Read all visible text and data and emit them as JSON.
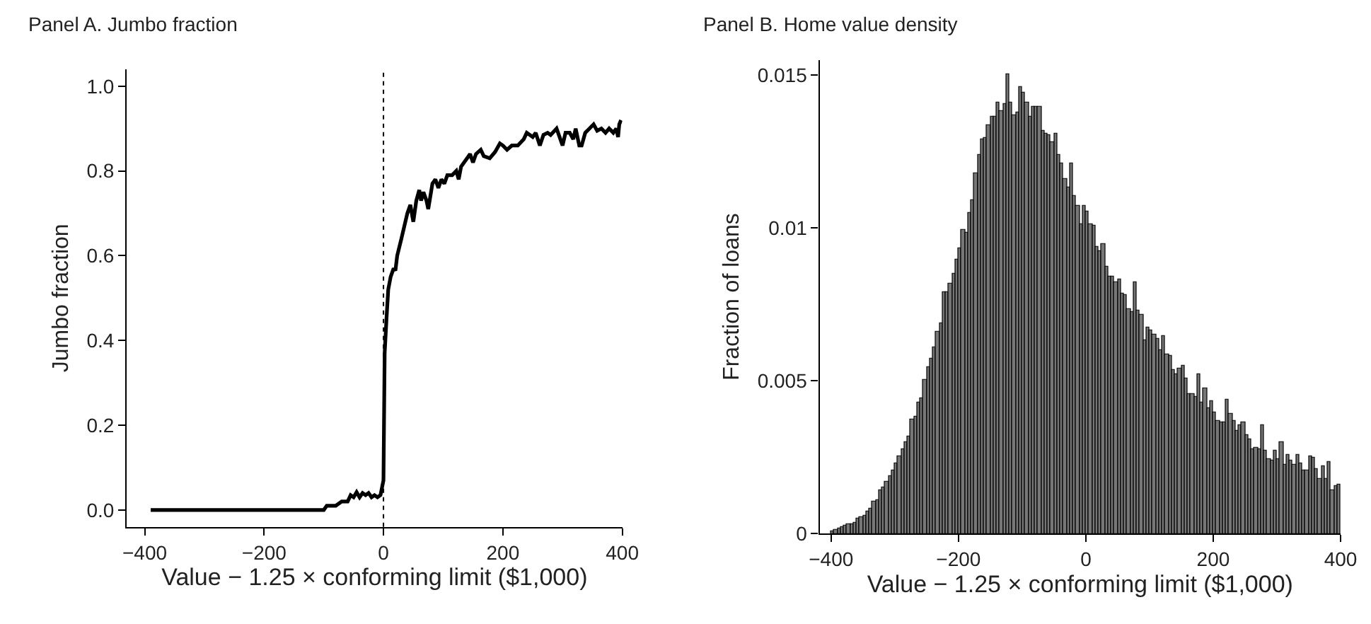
{
  "chart_data": [
    {
      "type": "line",
      "title": "Panel A. Jumbo fraction",
      "xlabel": "Value − 1.25 × conforming limit ($1,000)",
      "ylabel": "Jumbo fraction",
      "xlim": [
        -430,
        400
      ],
      "xticks": [
        -400,
        -200,
        0,
        200,
        400
      ],
      "ylim": [
        -0.04,
        1.04
      ],
      "yticks": [
        {
          "value": 0,
          "label": "0.0"
        },
        0.2,
        0.4,
        0.6,
        0.8,
        {
          "value": 1,
          "label": "1.0"
        }
      ],
      "line_style": "solid",
      "ref_lines": [
        {
          "axis": "x",
          "value": 0,
          "line_style": "dotted",
          "color": "#000000"
        }
      ],
      "series": [
        {
          "color": "#000000",
          "x": [
            -390,
            -100,
            -95,
            -80,
            -70,
            -60,
            -55,
            -50,
            -45,
            -40,
            -35,
            -30,
            -25,
            -20,
            -15,
            -10,
            -5,
            0,
            2,
            5,
            8,
            12,
            17,
            20,
            23,
            30,
            40,
            45,
            50,
            55,
            60,
            63,
            67,
            72,
            75,
            82,
            87,
            92,
            97,
            102,
            107,
            115,
            122,
            126,
            130,
            140,
            145,
            150,
            155,
            163,
            168,
            178,
            187,
            195,
            200,
            207,
            215,
            225,
            235,
            240,
            245,
            250,
            255,
            262,
            268,
            275,
            280,
            290,
            295,
            300,
            305,
            312,
            318,
            322,
            328,
            332,
            338,
            345,
            352,
            358,
            365,
            372,
            378,
            385,
            390,
            393,
            395,
            398
          ],
          "values": [
            0,
            0,
            0.01,
            0.01,
            0.02,
            0.02,
            0.035,
            0.03,
            0.042,
            0.03,
            0.04,
            0.035,
            0.04,
            0.03,
            0.035,
            0.03,
            0.035,
            0.07,
            0.37,
            0.45,
            0.52,
            0.55,
            0.57,
            0.565,
            0.6,
            0.64,
            0.7,
            0.72,
            0.68,
            0.73,
            0.755,
            0.73,
            0.75,
            0.73,
            0.71,
            0.77,
            0.78,
            0.76,
            0.78,
            0.77,
            0.79,
            0.79,
            0.8,
            0.78,
            0.81,
            0.83,
            0.84,
            0.82,
            0.84,
            0.85,
            0.835,
            0.83,
            0.845,
            0.865,
            0.86,
            0.85,
            0.86,
            0.86,
            0.875,
            0.89,
            0.885,
            0.88,
            0.89,
            0.86,
            0.885,
            0.89,
            0.885,
            0.9,
            0.88,
            0.86,
            0.89,
            0.89,
            0.875,
            0.9,
            0.86,
            0.86,
            0.89,
            0.9,
            0.91,
            0.895,
            0.9,
            0.89,
            0.9,
            0.89,
            0.9,
            0.88,
            0.91,
            0.92
          ]
        }
      ]
    },
    {
      "type": "histogram",
      "title": "Panel B. Home value density",
      "xlabel": "Value − 1.25 × conforming limit ($1,000)",
      "ylabel": "Fraction of loans",
      "xlim": [
        -418,
        400
      ],
      "xticks": [
        -400,
        -200,
        0,
        200,
        400
      ],
      "ylim": [
        0,
        0.0155
      ],
      "yticks": [
        0,
        0.005,
        0.01,
        0.015
      ],
      "color": "#777777",
      "bins": [
        -400,
        -395,
        -390,
        -385,
        -380,
        -375,
        -370,
        -365,
        -360,
        -355,
        -350,
        -345,
        -340,
        -335,
        -330,
        -325,
        -320,
        -315,
        -310,
        -305,
        -300,
        -295,
        -290,
        -285,
        -280,
        -275,
        -270,
        -265,
        -260,
        -255,
        -250,
        -245,
        -240,
        -235,
        -230,
        -225,
        -220,
        -215,
        -210,
        -205,
        -200,
        -195,
        -190,
        -185,
        -180,
        -175,
        -170,
        -165,
        -160,
        -155,
        -150,
        -145,
        -140,
        -135,
        -130,
        -125,
        -120,
        -115,
        -110,
        -105,
        -100,
        -95,
        -90,
        -85,
        -80,
        -75,
        -70,
        -65,
        -60,
        -55,
        -50,
        -45,
        -40,
        -35,
        -30,
        -25,
        -20,
        -15,
        -10,
        -5,
        0,
        5,
        10,
        15,
        20,
        25,
        30,
        35,
        40,
        45,
        50,
        55,
        60,
        65,
        70,
        75,
        80,
        85,
        90,
        95,
        100,
        105,
        110,
        115,
        120,
        125,
        130,
        135,
        140,
        145,
        150,
        155,
        160,
        165,
        170,
        175,
        180,
        185,
        190,
        195,
        200,
        205,
        210,
        215,
        220,
        225,
        230,
        235,
        240,
        245,
        250,
        255,
        260,
        265,
        270,
        275,
        280,
        285,
        290,
        295,
        300,
        305,
        310,
        315,
        320,
        325,
        330,
        335,
        340,
        345,
        350,
        355,
        360,
        365,
        370,
        375,
        380,
        385,
        390,
        395,
        400
      ],
      "values": [
        0.0001,
        0.00013,
        0.00015,
        0.0002,
        0.00025,
        0.0003,
        0.00033,
        0.00038,
        0.0005,
        0.00055,
        0.0006,
        0.00073,
        0.00083,
        0.00105,
        0.00108,
        0.0014,
        0.0015,
        0.00168,
        0.0019,
        0.00205,
        0.0023,
        0.00255,
        0.00275,
        0.003,
        0.0032,
        0.00375,
        0.00385,
        0.0043,
        0.00443,
        0.00503,
        0.00545,
        0.00575,
        0.0061,
        0.0066,
        0.00688,
        0.0079,
        0.0079,
        0.0082,
        0.0085,
        0.00895,
        0.00935,
        0.00995,
        0.00985,
        0.0105,
        0.0109,
        0.0118,
        0.0124,
        0.0129,
        0.01295,
        0.01335,
        0.01365,
        0.01365,
        0.0141,
        0.01385,
        0.01405,
        0.01505,
        0.0141,
        0.0137,
        0.0138,
        0.0146,
        0.01445,
        0.0141,
        0.01365,
        0.01395,
        0.01395,
        0.01395,
        0.0132,
        0.0131,
        0.01305,
        0.0128,
        0.0131,
        0.0124,
        0.0121,
        0.0116,
        0.01135,
        0.0121,
        0.01105,
        0.01075,
        0.01015,
        0.01075,
        0.01055,
        0.01015,
        0.0101,
        0.0094,
        0.00925,
        0.0095,
        0.00875,
        0.0084,
        0.0084,
        0.00825,
        0.0083,
        0.00785,
        0.0078,
        0.00735,
        0.00725,
        0.00825,
        0.0073,
        0.00715,
        0.00635,
        0.00675,
        0.00665,
        0.0065,
        0.0064,
        0.006,
        0.00645,
        0.00585,
        0.0058,
        0.00535,
        0.0052,
        0.0054,
        0.0055,
        0.0051,
        0.00458,
        0.00455,
        0.0045,
        0.0052,
        0.00428,
        0.00475,
        0.0041,
        0.00435,
        0.00398,
        0.00368,
        0.00363,
        0.00365,
        0.0044,
        0.0039,
        0.00368,
        0.00338,
        0.00353,
        0.00363,
        0.00325,
        0.00308,
        0.00278,
        0.0028,
        0.00278,
        0.00353,
        0.0027,
        0.00245,
        0.0024,
        0.00273,
        0.00245,
        0.003,
        0.00225,
        0.0026,
        0.0024,
        0.00225,
        0.00258,
        0.0023,
        0.00208,
        0.00208,
        0.00253,
        0.0025,
        0.00213,
        0.00178,
        0.00223,
        0.00178,
        0.00235,
        0.0014,
        0.00155,
        0.00163
      ]
    }
  ]
}
